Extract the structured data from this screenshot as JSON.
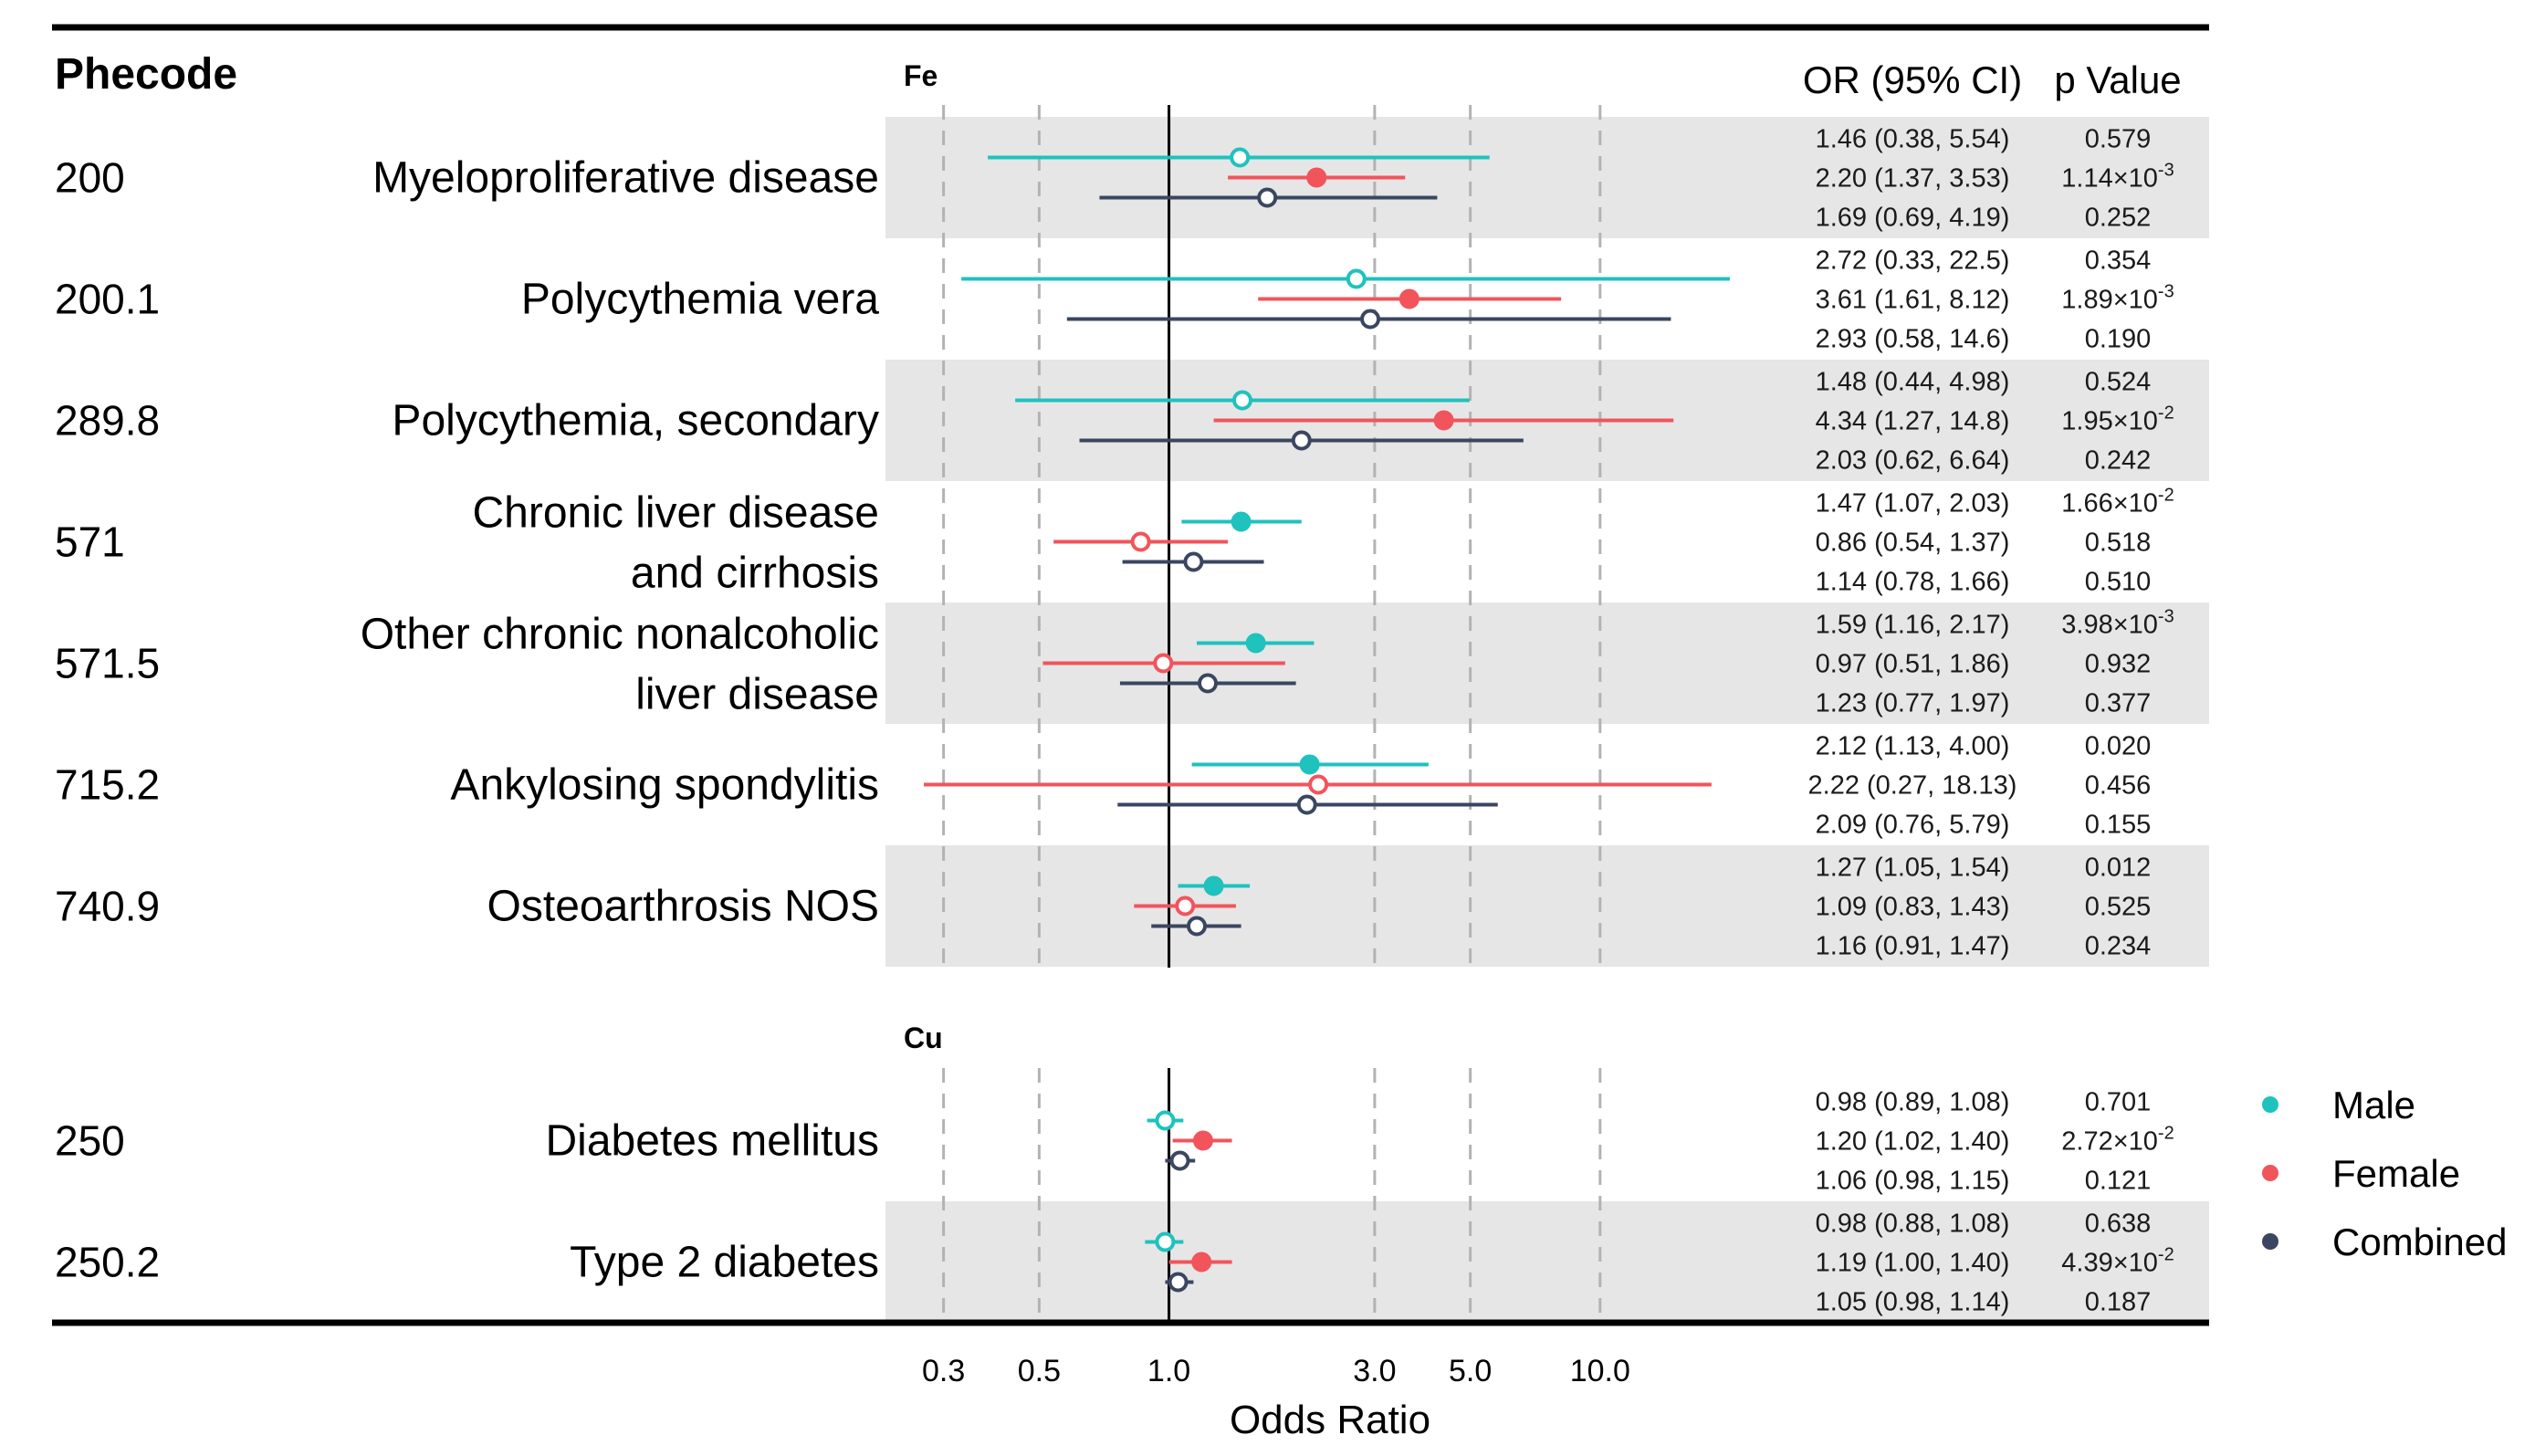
{
  "headers": {
    "phecode": "Phecode",
    "or_ci": "OR (95% CI)",
    "p_value": "p Value"
  },
  "colors": {
    "male": "#1fc2bd",
    "female": "#f2545b",
    "combined": "#3b4660",
    "band": "#e6e6e6",
    "grid": "#b3b3b3",
    "text": "#000000"
  },
  "legend": [
    {
      "key": "male",
      "label": "Male"
    },
    {
      "key": "female",
      "label": "Female"
    },
    {
      "key": "combined",
      "label": "Combined"
    }
  ],
  "chart_data": {
    "type": "forest",
    "xlabel": "Odds Ratio",
    "x_scale": "log",
    "xlim": [
      0.22,
      20
    ],
    "x_ticks": [
      0.3,
      0.5,
      1.0,
      3.0,
      5.0,
      10.0
    ],
    "x_tick_labels": [
      "0.3",
      "0.5",
      "1.0",
      "3.0",
      "5.0",
      "10.0"
    ],
    "reference_line": 1.0,
    "series_names": [
      "Male",
      "Female",
      "Combined"
    ],
    "panels": [
      {
        "label": "Fe",
        "rows": [
          {
            "phecode": "200",
            "name": [
              "Myeloproliferative disease"
            ],
            "shaded": true,
            "estimates": [
              {
                "series": "male",
                "or": 1.46,
                "lo": 0.38,
                "hi": 5.54,
                "ci_text": "1.46 (0.38, 5.54)",
                "p": "0.579",
                "sig": false
              },
              {
                "series": "female",
                "or": 2.2,
                "lo": 1.37,
                "hi": 3.53,
                "ci_text": "2.20 (1.37, 3.53)",
                "p": "1.14×10",
                "p_exp": "-3",
                "sig": true
              },
              {
                "series": "combined",
                "or": 1.69,
                "lo": 0.69,
                "hi": 4.19,
                "ci_text": "1.69 (0.69, 4.19)",
                "p": "0.252",
                "sig": false
              }
            ]
          },
          {
            "phecode": "200.1",
            "name": [
              "Polycythemia vera"
            ],
            "shaded": false,
            "estimates": [
              {
                "series": "male",
                "or": 2.72,
                "lo": 0.33,
                "hi": 22.5,
                "ci_text": "2.72 (0.33, 22.5)",
                "p": "0.354",
                "sig": false
              },
              {
                "series": "female",
                "or": 3.61,
                "lo": 1.61,
                "hi": 8.12,
                "ci_text": "3.61 (1.61, 8.12)",
                "p": "1.89×10",
                "p_exp": "-3",
                "sig": true
              },
              {
                "series": "combined",
                "or": 2.93,
                "lo": 0.58,
                "hi": 14.6,
                "ci_text": "2.93 (0.58, 14.6)",
                "p": "0.190",
                "sig": false
              }
            ]
          },
          {
            "phecode": "289.8",
            "name": [
              "Polycythemia, secondary"
            ],
            "shaded": true,
            "estimates": [
              {
                "series": "male",
                "or": 1.48,
                "lo": 0.44,
                "hi": 4.98,
                "ci_text": "1.48 (0.44, 4.98)",
                "p": "0.524",
                "sig": false
              },
              {
                "series": "female",
                "or": 4.34,
                "lo": 1.27,
                "hi": 14.8,
                "ci_text": "4.34 (1.27, 14.8)",
                "p": "1.95×10",
                "p_exp": "-2",
                "sig": true
              },
              {
                "series": "combined",
                "or": 2.03,
                "lo": 0.62,
                "hi": 6.64,
                "ci_text": "2.03 (0.62, 6.64)",
                "p": "0.242",
                "sig": false
              }
            ]
          },
          {
            "phecode": "571",
            "name": [
              "Chronic liver disease",
              "and cirrhosis"
            ],
            "shaded": false,
            "estimates": [
              {
                "series": "male",
                "or": 1.47,
                "lo": 1.07,
                "hi": 2.03,
                "ci_text": "1.47 (1.07, 2.03)",
                "p": "1.66×10",
                "p_exp": "-2",
                "sig": true
              },
              {
                "series": "female",
                "or": 0.86,
                "lo": 0.54,
                "hi": 1.37,
                "ci_text": "0.86 (0.54, 1.37)",
                "p": "0.518",
                "sig": false
              },
              {
                "series": "combined",
                "or": 1.14,
                "lo": 0.78,
                "hi": 1.66,
                "ci_text": "1.14 (0.78, 1.66)",
                "p": "0.510",
                "sig": false
              }
            ]
          },
          {
            "phecode": "571.5",
            "name": [
              "Other chronic nonalcoholic",
              "liver disease"
            ],
            "shaded": true,
            "estimates": [
              {
                "series": "male",
                "or": 1.59,
                "lo": 1.16,
                "hi": 2.17,
                "ci_text": "1.59 (1.16, 2.17)",
                "p": "3.98×10",
                "p_exp": "-3",
                "sig": true
              },
              {
                "series": "female",
                "or": 0.97,
                "lo": 0.51,
                "hi": 1.86,
                "ci_text": "0.97 (0.51, 1.86)",
                "p": "0.932",
                "sig": false
              },
              {
                "series": "combined",
                "or": 1.23,
                "lo": 0.77,
                "hi": 1.97,
                "ci_text": "1.23 (0.77, 1.97)",
                "p": "0.377",
                "sig": false
              }
            ]
          },
          {
            "phecode": "715.2",
            "name": [
              "Ankylosing spondylitis"
            ],
            "shaded": false,
            "estimates": [
              {
                "series": "male",
                "or": 2.12,
                "lo": 1.13,
                "hi": 4.0,
                "ci_text": "2.12 (1.13, 4.00)",
                "p": "0.020",
                "sig": true
              },
              {
                "series": "female",
                "or": 2.22,
                "lo": 0.27,
                "hi": 18.13,
                "ci_text": "2.22 (0.27, 18.13)",
                "p": "0.456",
                "sig": false
              },
              {
                "series": "combined",
                "or": 2.09,
                "lo": 0.76,
                "hi": 5.79,
                "ci_text": "2.09 (0.76, 5.79)",
                "p": "0.155",
                "sig": false
              }
            ]
          },
          {
            "phecode": "740.9",
            "name": [
              "Osteoarthrosis NOS"
            ],
            "shaded": true,
            "estimates": [
              {
                "series": "male",
                "or": 1.27,
                "lo": 1.05,
                "hi": 1.54,
                "ci_text": "1.27 (1.05, 1.54)",
                "p": "0.012",
                "sig": true
              },
              {
                "series": "female",
                "or": 1.09,
                "lo": 0.83,
                "hi": 1.43,
                "ci_text": "1.09 (0.83, 1.43)",
                "p": "0.525",
                "sig": false
              },
              {
                "series": "combined",
                "or": 1.16,
                "lo": 0.91,
                "hi": 1.47,
                "ci_text": "1.16 (0.91, 1.47)",
                "p": "0.234",
                "sig": false
              }
            ]
          }
        ]
      },
      {
        "label": "Cu",
        "rows": [
          {
            "phecode": "250",
            "name": [
              "Diabetes mellitus"
            ],
            "shaded": false,
            "estimates": [
              {
                "series": "male",
                "or": 0.98,
                "lo": 0.89,
                "hi": 1.08,
                "ci_text": "0.98 (0.89, 1.08)",
                "p": "0.701",
                "sig": false
              },
              {
                "series": "female",
                "or": 1.2,
                "lo": 1.02,
                "hi": 1.4,
                "ci_text": "1.20 (1.02, 1.40)",
                "p": "2.72×10",
                "p_exp": "-2",
                "sig": true
              },
              {
                "series": "combined",
                "or": 1.06,
                "lo": 0.98,
                "hi": 1.15,
                "ci_text": "1.06 (0.98, 1.15)",
                "p": "0.121",
                "sig": false
              }
            ]
          },
          {
            "phecode": "250.2",
            "name": [
              "Type 2 diabetes"
            ],
            "shaded": true,
            "estimates": [
              {
                "series": "male",
                "or": 0.98,
                "lo": 0.88,
                "hi": 1.08,
                "ci_text": "0.98 (0.88, 1.08)",
                "p": "0.638",
                "sig": false
              },
              {
                "series": "female",
                "or": 1.19,
                "lo": 1.0,
                "hi": 1.4,
                "ci_text": "1.19 (1.00, 1.40)",
                "p": "4.39×10",
                "p_exp": "-2",
                "sig": true
              },
              {
                "series": "combined",
                "or": 1.05,
                "lo": 0.98,
                "hi": 1.14,
                "ci_text": "1.05 (0.98, 1.14)",
                "p": "0.187",
                "sig": false
              }
            ]
          }
        ]
      }
    ]
  }
}
